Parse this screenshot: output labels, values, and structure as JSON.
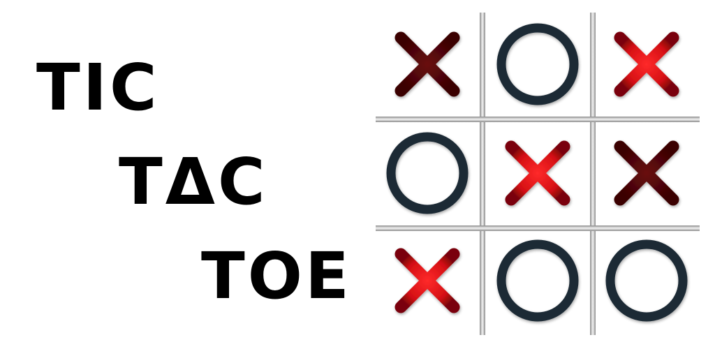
{
  "title": {
    "line1": "TIC",
    "line2": "TΔC",
    "line3": "TOE"
  },
  "colors": {
    "x_bright": "#e0151a",
    "x_dark": "#5a0608",
    "o_ring": "#1b2a36",
    "grid": "#bdbdbd",
    "text": "#000000"
  },
  "board": {
    "cells": [
      {
        "row": 0,
        "col": 0,
        "mark": "X",
        "style": "dark"
      },
      {
        "row": 0,
        "col": 1,
        "mark": "O",
        "style": "normal"
      },
      {
        "row": 0,
        "col": 2,
        "mark": "X",
        "style": "bright"
      },
      {
        "row": 1,
        "col": 0,
        "mark": "O",
        "style": "normal"
      },
      {
        "row": 1,
        "col": 1,
        "mark": "X",
        "style": "bright"
      },
      {
        "row": 1,
        "col": 2,
        "mark": "X",
        "style": "dark"
      },
      {
        "row": 2,
        "col": 0,
        "mark": "X",
        "style": "bright"
      },
      {
        "row": 2,
        "col": 1,
        "mark": "O",
        "style": "normal"
      },
      {
        "row": 2,
        "col": 2,
        "mark": "O",
        "style": "normal"
      }
    ]
  }
}
